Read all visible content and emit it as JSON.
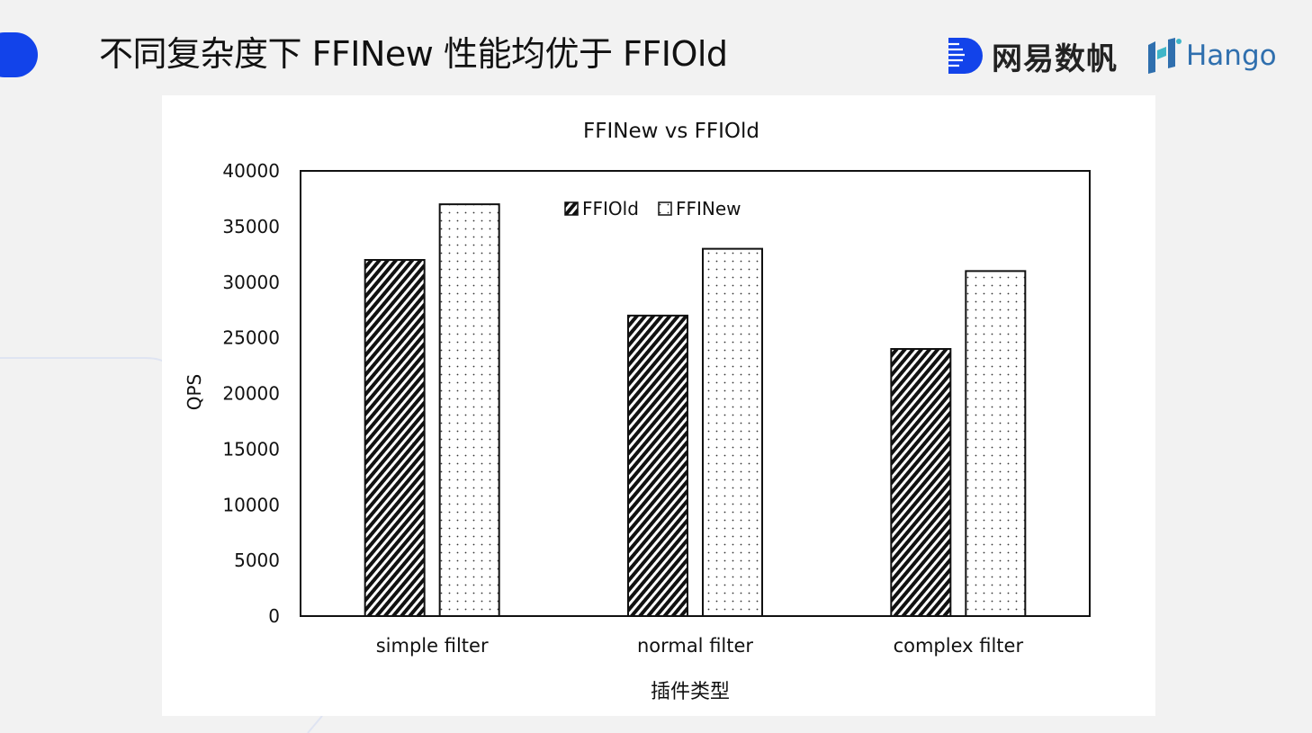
{
  "slide": {
    "title": "不同复杂度下 FFINew 性能均优于 FFIOld",
    "accent_color": "#1243ea",
    "background_color": "#f2f2f2"
  },
  "brands": {
    "netease": {
      "text": "网易数帆",
      "icon": "netease-shufan-logo-icon",
      "color": "#1243ea"
    },
    "hango": {
      "text": "Hango",
      "icon": "hango-logo-icon",
      "color": "#2f6fae"
    }
  },
  "chart_data": {
    "type": "bar",
    "title": "FFINew vs FFIOld",
    "xlabel": "插件类型",
    "ylabel": "QPS",
    "categories": [
      "simple filter",
      "normal filter",
      "complex filter"
    ],
    "series": [
      {
        "name": "FFIOld",
        "values": [
          32000,
          27000,
          24000
        ],
        "pattern": "diagonal-hatch"
      },
      {
        "name": "FFINew",
        "values": [
          37000,
          33000,
          31000
        ],
        "pattern": "dots"
      }
    ],
    "ylim": [
      0,
      40000
    ],
    "yticks": [
      0,
      5000,
      10000,
      15000,
      20000,
      25000,
      30000,
      35000,
      40000
    ],
    "grid": false,
    "legend_position": "top-center"
  }
}
